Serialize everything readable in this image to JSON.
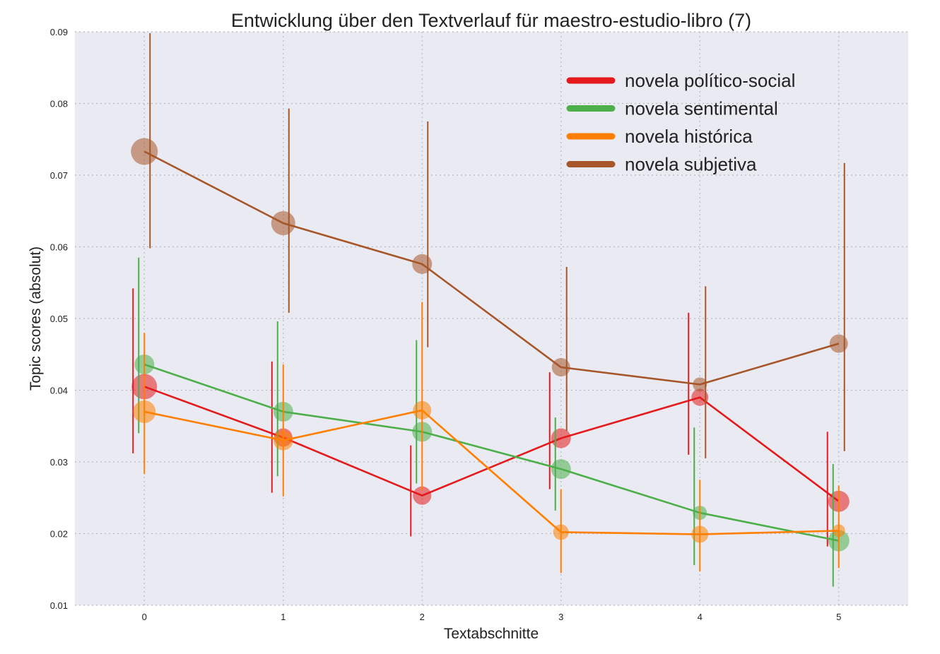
{
  "chart_data": {
    "type": "line",
    "title": "Entwicklung über den Textverlauf für maestro-estudio-libro (7)",
    "xlabel": "Textabschnitte",
    "ylabel": "Topic scores (absolut)",
    "x": [
      0,
      1,
      2,
      3,
      4,
      5
    ],
    "x_tick_labels": [
      "0",
      "1",
      "2",
      "3",
      "4",
      "5"
    ],
    "xlim": [
      -0.5,
      5.5
    ],
    "ylim": [
      0.01,
      0.09
    ],
    "y_tick_labels": [
      "0.01",
      "0.02",
      "0.03",
      "0.04",
      "0.05",
      "0.06",
      "0.07",
      "0.08",
      "0.09"
    ],
    "y_ticks": [
      0.01,
      0.02,
      0.03,
      0.04,
      0.05,
      0.06,
      0.07,
      0.08,
      0.09
    ],
    "grid": true,
    "legend_position": "top-right",
    "series": [
      {
        "name": "novela político-social",
        "color": "#e41a1c",
        "values": [
          0.0405,
          0.0334,
          0.0253,
          0.0333,
          0.039,
          0.0245
        ],
        "error_low": [
          0.0312,
          0.0257,
          0.0196,
          0.0262,
          0.031,
          0.0182
        ],
        "error_high": [
          0.0542,
          0.044,
          0.0323,
          0.0425,
          0.0508,
          0.0342
        ],
        "marker_size": [
          18,
          13,
          13,
          14,
          12,
          15
        ]
      },
      {
        "name": "novela sentimental",
        "color": "#4daf4a",
        "values": [
          0.0436,
          0.037,
          0.0342,
          0.029,
          0.0229,
          0.019
        ],
        "error_low": [
          0.034,
          0.028,
          0.027,
          0.0232,
          0.0156,
          0.0126
        ],
        "error_high": [
          0.0585,
          0.0496,
          0.047,
          0.0362,
          0.0348,
          0.0297
        ],
        "marker_size": [
          14,
          14,
          14,
          14,
          10,
          15
        ]
      },
      {
        "name": "novela histórica",
        "color": "#ff7f00",
        "values": [
          0.037,
          0.033,
          0.0372,
          0.0202,
          0.0199,
          0.0204
        ],
        "error_low": [
          0.0283,
          0.0252,
          0.026,
          0.0145,
          0.0147,
          0.0152
        ],
        "error_high": [
          0.048,
          0.0436,
          0.0523,
          0.0262,
          0.0275,
          0.0267
        ],
        "marker_size": [
          16,
          14,
          13,
          11,
          12,
          9
        ]
      },
      {
        "name": "novela subjetiva",
        "color": "#a65628",
        "values": [
          0.0733,
          0.0633,
          0.0576,
          0.0432,
          0.0408,
          0.0465
        ],
        "error_low": [
          0.0598,
          0.0508,
          0.046,
          0.0343,
          0.0305,
          0.0315
        ],
        "error_high": [
          0.0898,
          0.0793,
          0.0775,
          0.0572,
          0.0545,
          0.0717
        ],
        "marker_size": [
          19,
          17,
          14,
          13,
          10,
          13
        ]
      }
    ]
  }
}
